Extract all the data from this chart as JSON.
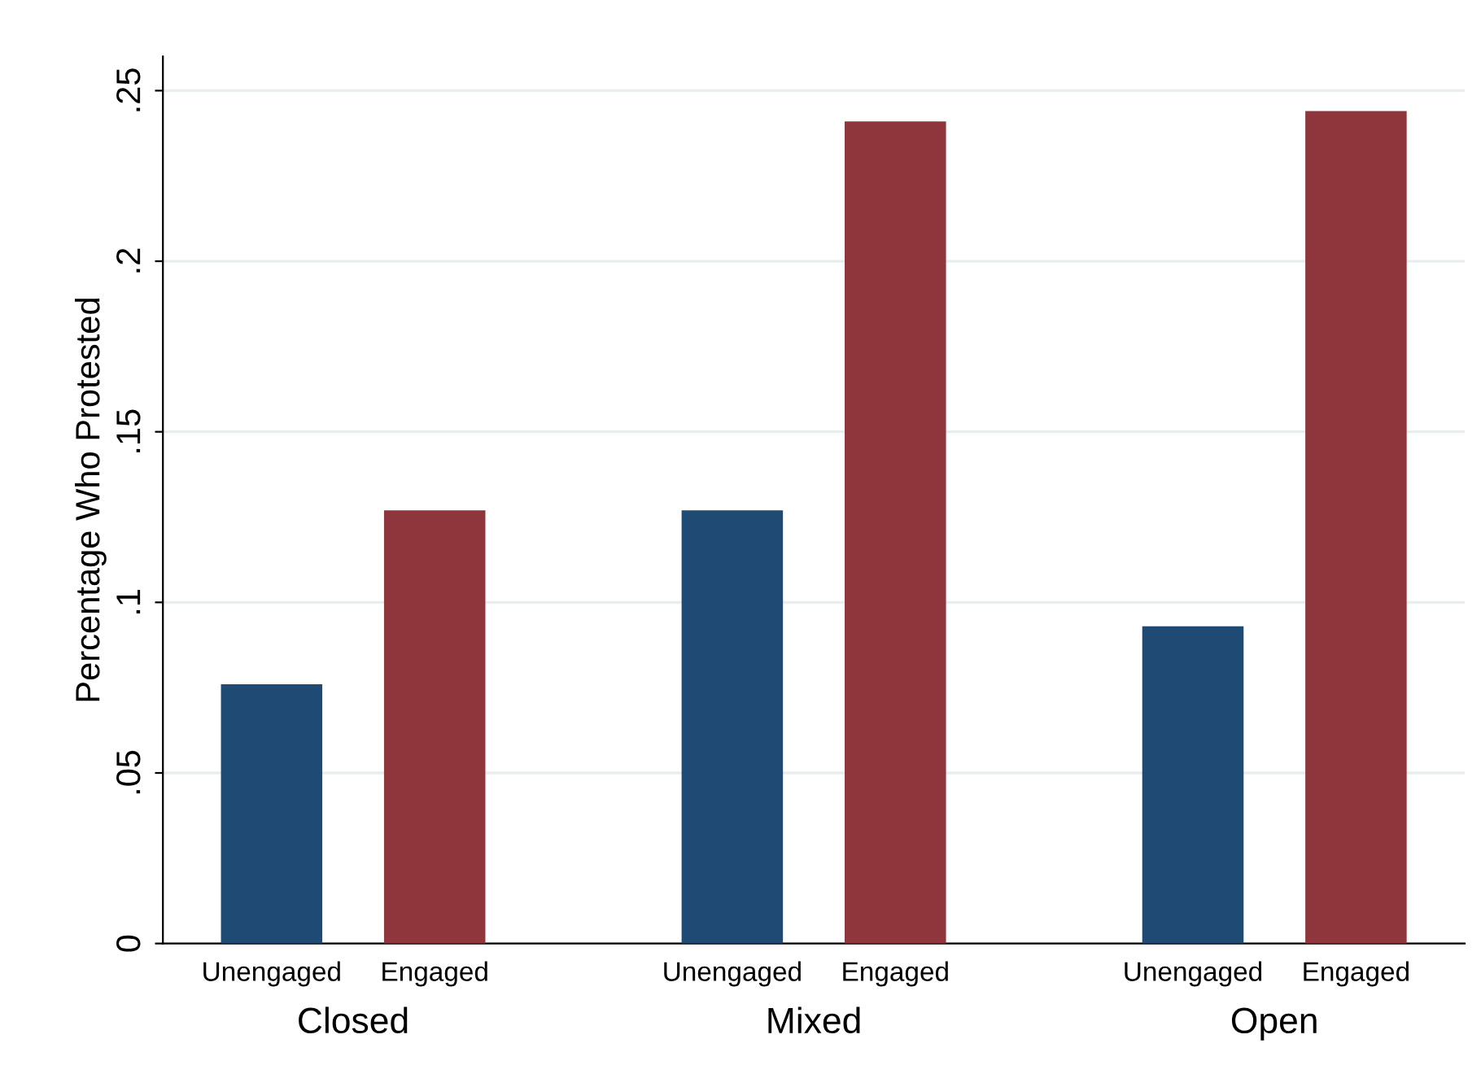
{
  "chart_data": {
    "type": "bar",
    "ylabel": "Percentage Who Protested",
    "categories": [
      "Closed",
      "Mixed",
      "Open"
    ],
    "series": [
      {
        "name": "Unengaged",
        "color": "#1f4a73",
        "values": [
          0.076,
          0.127,
          0.093
        ]
      },
      {
        "name": "Engaged",
        "color": "#8f363d",
        "values": [
          0.127,
          0.241,
          0.244
        ]
      }
    ],
    "ylim": [
      0,
      0.26
    ],
    "yticks": [
      {
        "value": 0,
        "label": "0"
      },
      {
        "value": 0.05,
        "label": ".05"
      },
      {
        "value": 0.1,
        "label": ".1"
      },
      {
        "value": 0.15,
        "label": ".15"
      },
      {
        "value": 0.2,
        "label": ".2"
      },
      {
        "value": 0.25,
        "label": ".25"
      }
    ],
    "grid": "y",
    "legend": false
  }
}
